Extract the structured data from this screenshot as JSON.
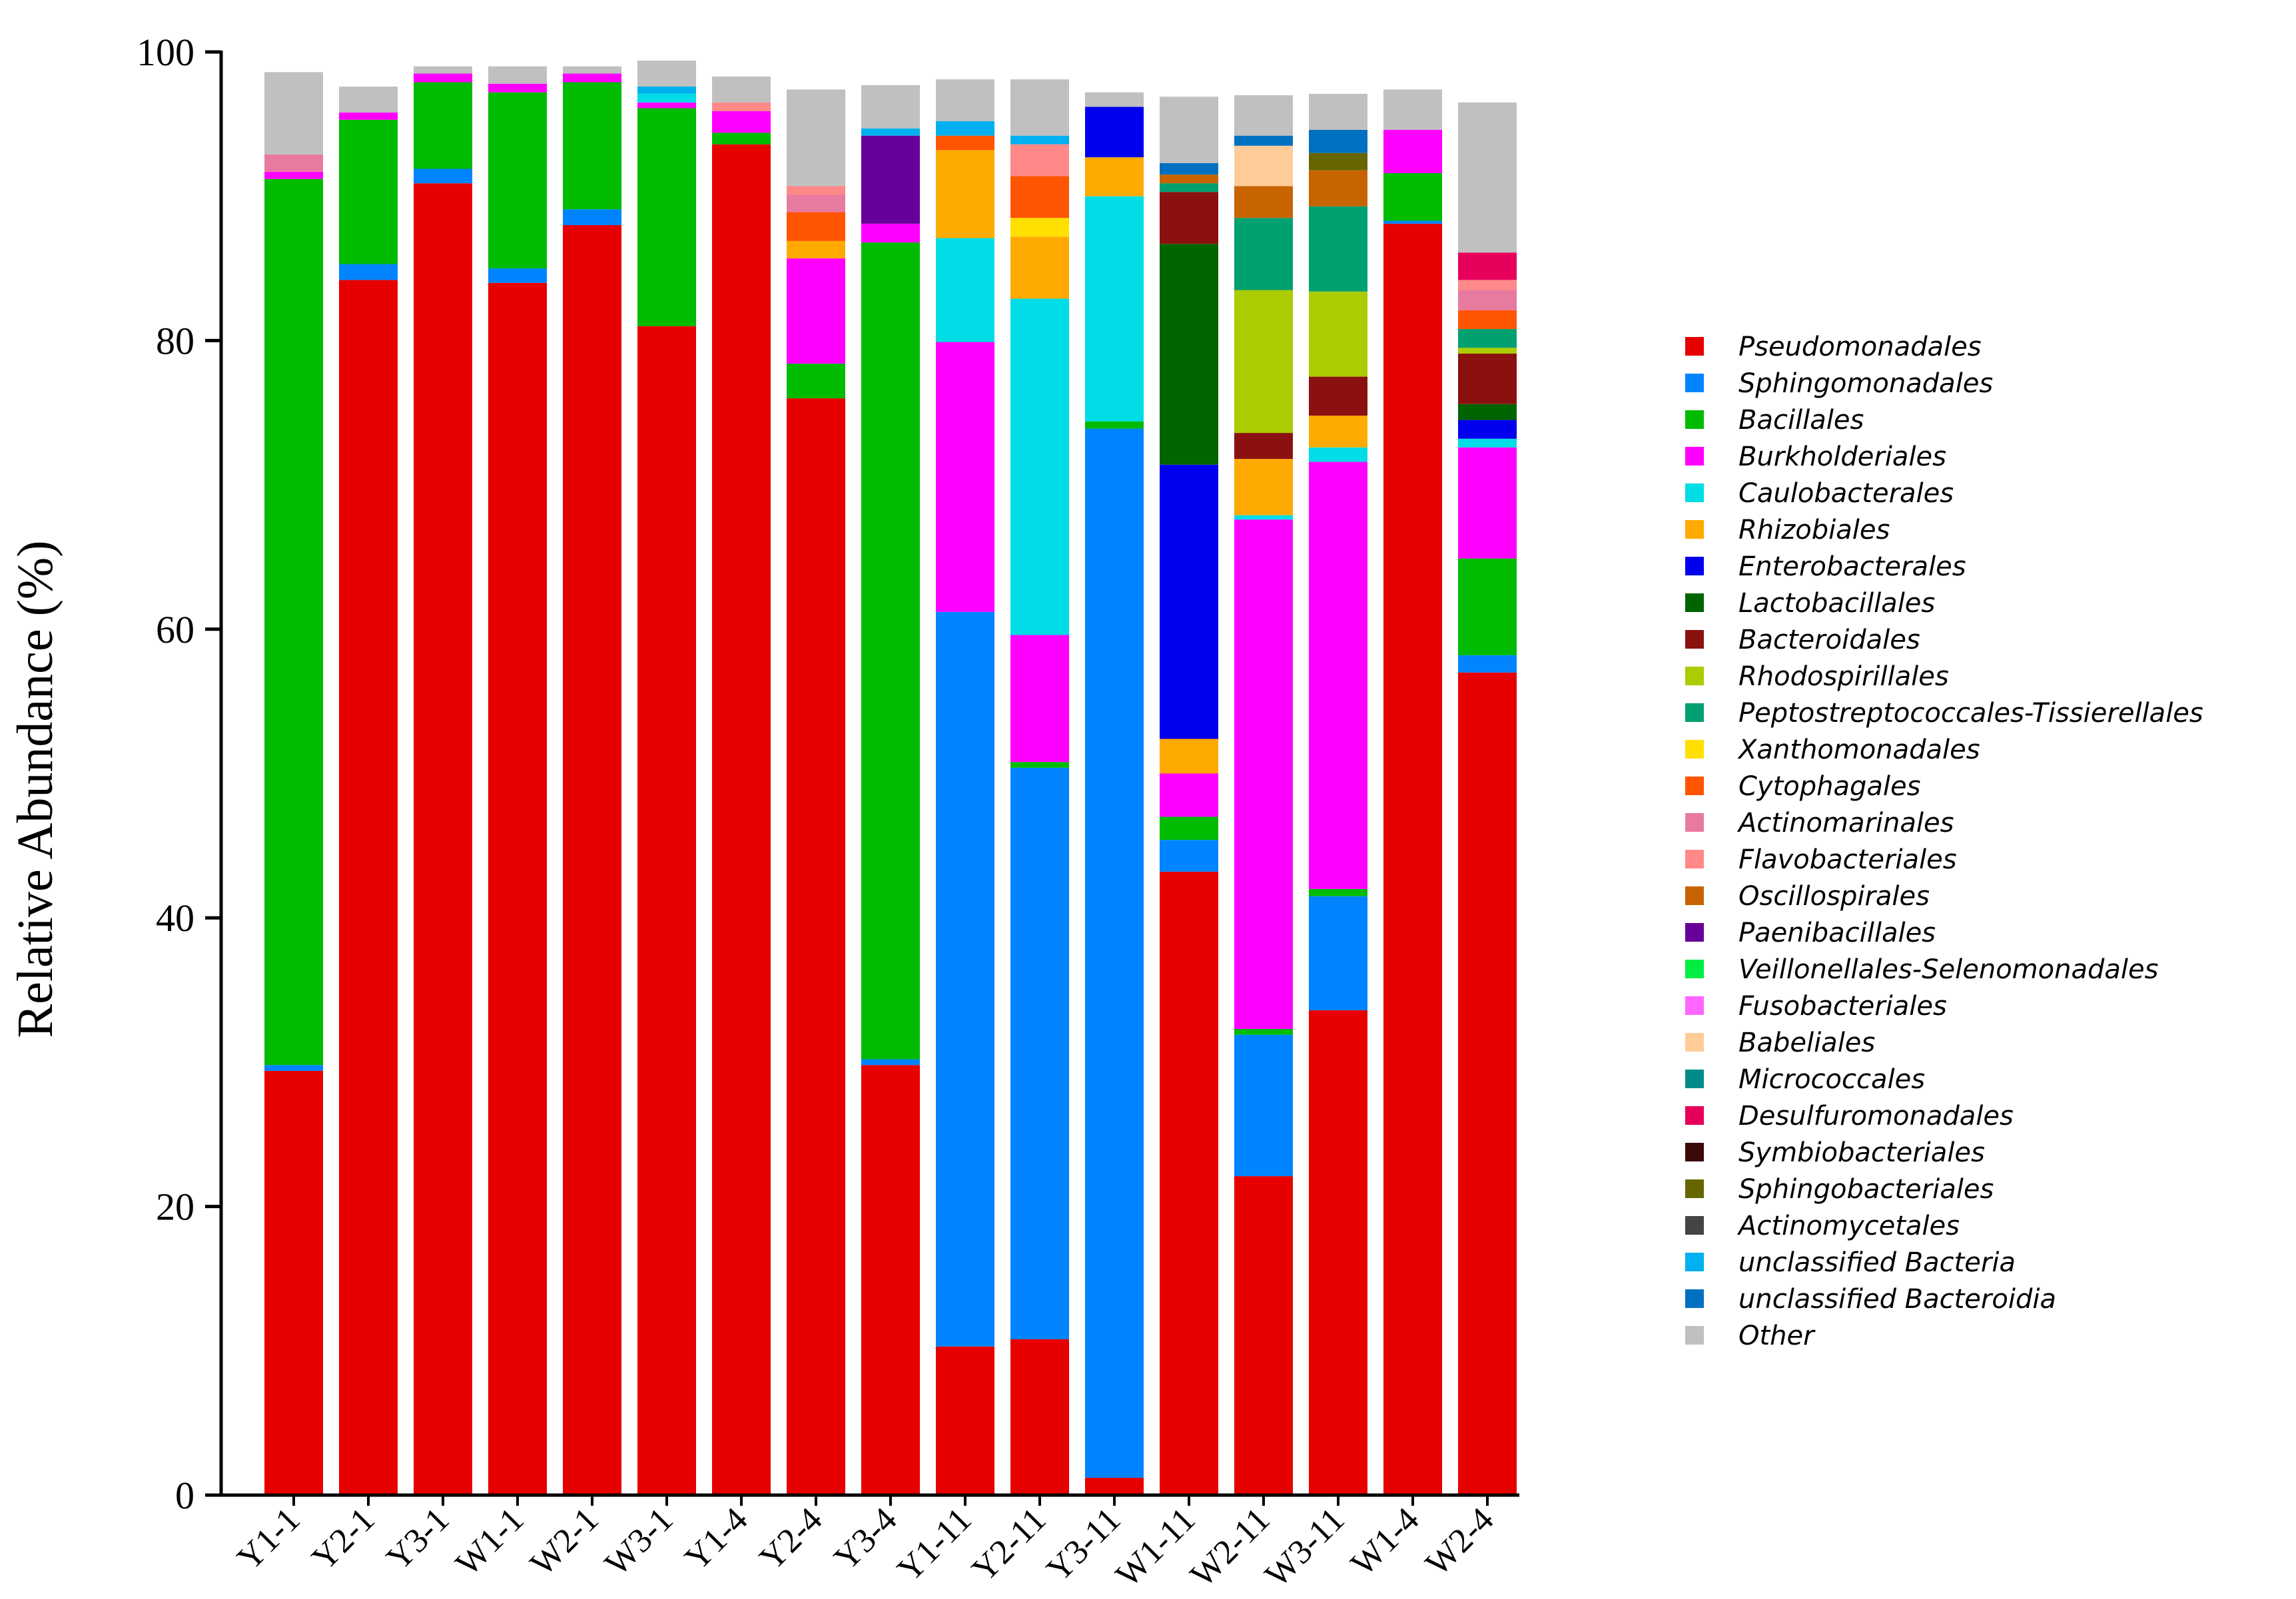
{
  "chart_data": {
    "type": "bar",
    "stacked": true,
    "ylabel": "Relative Abundance (%)",
    "ylim": [
      0,
      100
    ],
    "yticks": [
      0,
      20,
      40,
      60,
      80,
      100
    ],
    "grid": false,
    "legend_position": "right",
    "categories": [
      "Y1-1",
      "Y2-1",
      "Y3-1",
      "W1-1",
      "W2-1",
      "W3-1",
      "Y1-4",
      "Y2-4",
      "Y3-4",
      "Y1-11",
      "Y2-11",
      "Y3-11",
      "W1-11",
      "W2-11",
      "W3-11",
      "W1-4",
      "W2-4"
    ],
    "series": [
      {
        "name": "Pseudomonadales",
        "color": "#e60000",
        "values": [
          29.4,
          84.2,
          90.9,
          84.0,
          88.0,
          81.0,
          93.6,
          76.0,
          29.8,
          10.3,
          10.8,
          1.2,
          43.2,
          22.1,
          33.6,
          88.1,
          57.0
        ]
      },
      {
        "name": "Sphingomonadales",
        "color": "#0084ff",
        "values": [
          0.4,
          1.1,
          1.0,
          1.0,
          1.1,
          0,
          0,
          0,
          0.4,
          50.9,
          39.6,
          72.7,
          2.2,
          9.8,
          7.9,
          0.2,
          1.2
        ]
      },
      {
        "name": "Bacillales",
        "color": "#00bb00",
        "values": [
          61.4,
          10.0,
          6.0,
          12.2,
          8.8,
          15.1,
          0.8,
          2.4,
          56.6,
          0,
          0.4,
          0.5,
          1.6,
          0.4,
          0.5,
          3.3,
          6.7
        ]
      },
      {
        "name": "Burkholderiales",
        "color": "#ff00ff",
        "values": [
          0.5,
          0.5,
          0.6,
          0.6,
          0.6,
          0.4,
          1.5,
          7.3,
          1.3,
          18.7,
          8.8,
          0,
          3.0,
          35.3,
          29.6,
          3.0,
          7.7
        ]
      },
      {
        "name": "Caulobacterales",
        "color": "#00dde6",
        "values": [
          0,
          0,
          0,
          0,
          0,
          0.6,
          0,
          0,
          0,
          7.2,
          23.3,
          15.6,
          0,
          0.3,
          1.0,
          0,
          0.6
        ]
      },
      {
        "name": "Rhizobiales",
        "color": "#ffaa00",
        "values": [
          0,
          0,
          0,
          0,
          0,
          0,
          0,
          1.2,
          0,
          6.1,
          4.3,
          2.7,
          2.4,
          3.9,
          2.2,
          0,
          0
        ]
      },
      {
        "name": "Enterobacterales",
        "color": "#0000ee",
        "values": [
          0,
          0,
          0,
          0,
          0,
          0,
          0,
          0,
          0,
          0,
          0,
          3.5,
          19.0,
          0,
          0,
          0,
          1.3
        ]
      },
      {
        "name": "Lactobacillales",
        "color": "#006400",
        "values": [
          0,
          0,
          0,
          0,
          0,
          0,
          0,
          0,
          0,
          0,
          0,
          0,
          15.3,
          0,
          0,
          0,
          1.1
        ]
      },
      {
        "name": "Bacteroidales",
        "color": "#8b1010",
        "values": [
          0,
          0,
          0,
          0,
          0,
          0,
          0,
          0,
          0,
          0,
          0,
          0,
          3.6,
          1.8,
          2.7,
          0,
          3.5
        ]
      },
      {
        "name": "Rhodospirillales",
        "color": "#aacc00",
        "values": [
          0,
          0,
          0,
          0,
          0,
          0,
          0,
          0,
          0,
          0,
          0,
          0,
          0,
          9.9,
          5.9,
          0,
          0.4
        ]
      },
      {
        "name": "Peptostreptococcales-Tissierellales",
        "color": "#00a070",
        "values": [
          0,
          0,
          0,
          0,
          0,
          0,
          0,
          0,
          0,
          0,
          0,
          0,
          0.6,
          5.0,
          5.9,
          0,
          1.3
        ]
      },
      {
        "name": "Xanthomonadales",
        "color": "#ffe000",
        "values": [
          0,
          0,
          0,
          0,
          0,
          0,
          0,
          0,
          0,
          0,
          1.3,
          0,
          0,
          0,
          0,
          0,
          0
        ]
      },
      {
        "name": "Cytophagales",
        "color": "#ff5500",
        "values": [
          0,
          0,
          0,
          0,
          0,
          0,
          0,
          2.0,
          0,
          1.0,
          2.9,
          0,
          0,
          0,
          0,
          0,
          1.3
        ]
      },
      {
        "name": "Actinomarinales",
        "color": "#e87aa0",
        "values": [
          1.2,
          0,
          0,
          0,
          0,
          0,
          0,
          1.2,
          0,
          0,
          0,
          0,
          0,
          0,
          0,
          0,
          1.4
        ]
      },
      {
        "name": "Flavobacteriales",
        "color": "#ff8888",
        "values": [
          0,
          0,
          0,
          0,
          0,
          0,
          0.6,
          0.6,
          0,
          0,
          2.2,
          0,
          0,
          0,
          0,
          0,
          0.7
        ]
      },
      {
        "name": "Oscillospirales",
        "color": "#c86400",
        "values": [
          0,
          0,
          0,
          0,
          0,
          0,
          0,
          0,
          0,
          0,
          0,
          0,
          0.6,
          2.2,
          2.5,
          0,
          0
        ]
      },
      {
        "name": "Paenibacillales",
        "color": "#660099",
        "values": [
          0,
          0,
          0,
          0,
          0,
          0,
          0,
          0,
          6.1,
          0,
          0,
          0,
          0,
          0,
          0,
          0,
          0
        ]
      },
      {
        "name": "Veillonellales-Selenomonadales",
        "color": "#00ee44",
        "values": [
          0,
          0,
          0,
          0,
          0,
          0,
          0,
          0,
          0,
          0,
          0,
          0,
          0,
          0,
          0,
          0,
          0
        ]
      },
      {
        "name": "Fusobacteriales",
        "color": "#ff66ff",
        "values": [
          0,
          0,
          0,
          0,
          0,
          0,
          0,
          0,
          0,
          0,
          0,
          0,
          0,
          0,
          0,
          0,
          0
        ]
      },
      {
        "name": "Babeliales",
        "color": "#ffcc99",
        "values": [
          0,
          0,
          0,
          0,
          0,
          0,
          0,
          0,
          0,
          0,
          0,
          0,
          0,
          2.8,
          0,
          0,
          0
        ]
      },
      {
        "name": "Micrococcales",
        "color": "#008b8b",
        "values": [
          0,
          0,
          0,
          0,
          0,
          0,
          0,
          0,
          0,
          0,
          0,
          0,
          0,
          0,
          0,
          0,
          0
        ]
      },
      {
        "name": "Desulfuromonadales",
        "color": "#e6005c",
        "values": [
          0,
          0,
          0,
          0,
          0,
          0,
          0,
          0,
          0,
          0,
          0,
          0,
          0,
          0,
          0,
          0,
          1.9
        ]
      },
      {
        "name": "Symbiobacteriales",
        "color": "#3a0a0a",
        "values": [
          0,
          0,
          0,
          0,
          0,
          0,
          0,
          0,
          0,
          0,
          0,
          0,
          0,
          0,
          0,
          0,
          0
        ]
      },
      {
        "name": "Sphingobacteriales",
        "color": "#666600",
        "values": [
          0,
          0,
          0,
          0,
          0,
          0,
          0,
          0,
          0,
          0,
          0,
          0,
          0,
          0,
          1.2,
          0,
          0
        ]
      },
      {
        "name": "Actinomycetales",
        "color": "#444444",
        "values": [
          0,
          0,
          0,
          0,
          0,
          0,
          0,
          0,
          0,
          0,
          0,
          0,
          0,
          0,
          0,
          0,
          0
        ]
      },
      {
        "name": "unclassified Bacteria",
        "color": "#00b0f0",
        "values": [
          0,
          0,
          0,
          0,
          0,
          0.5,
          0,
          0,
          0.5,
          1.0,
          0.6,
          0,
          0,
          0,
          0,
          0,
          0
        ]
      },
      {
        "name": "unclassified Bacteroidia",
        "color": "#0070c0",
        "values": [
          0,
          0,
          0,
          0,
          0,
          0,
          0,
          0,
          0,
          0,
          0,
          0,
          0.8,
          0.7,
          1.6,
          0,
          0
        ]
      },
      {
        "name": "Other",
        "color": "#c0c0c0",
        "values": [
          5.7,
          1.8,
          0.5,
          1.2,
          0.5,
          1.8,
          1.8,
          6.7,
          3.0,
          2.9,
          3.9,
          1.0,
          4.6,
          2.8,
          2.5,
          2.8,
          10.4
        ]
      }
    ]
  }
}
